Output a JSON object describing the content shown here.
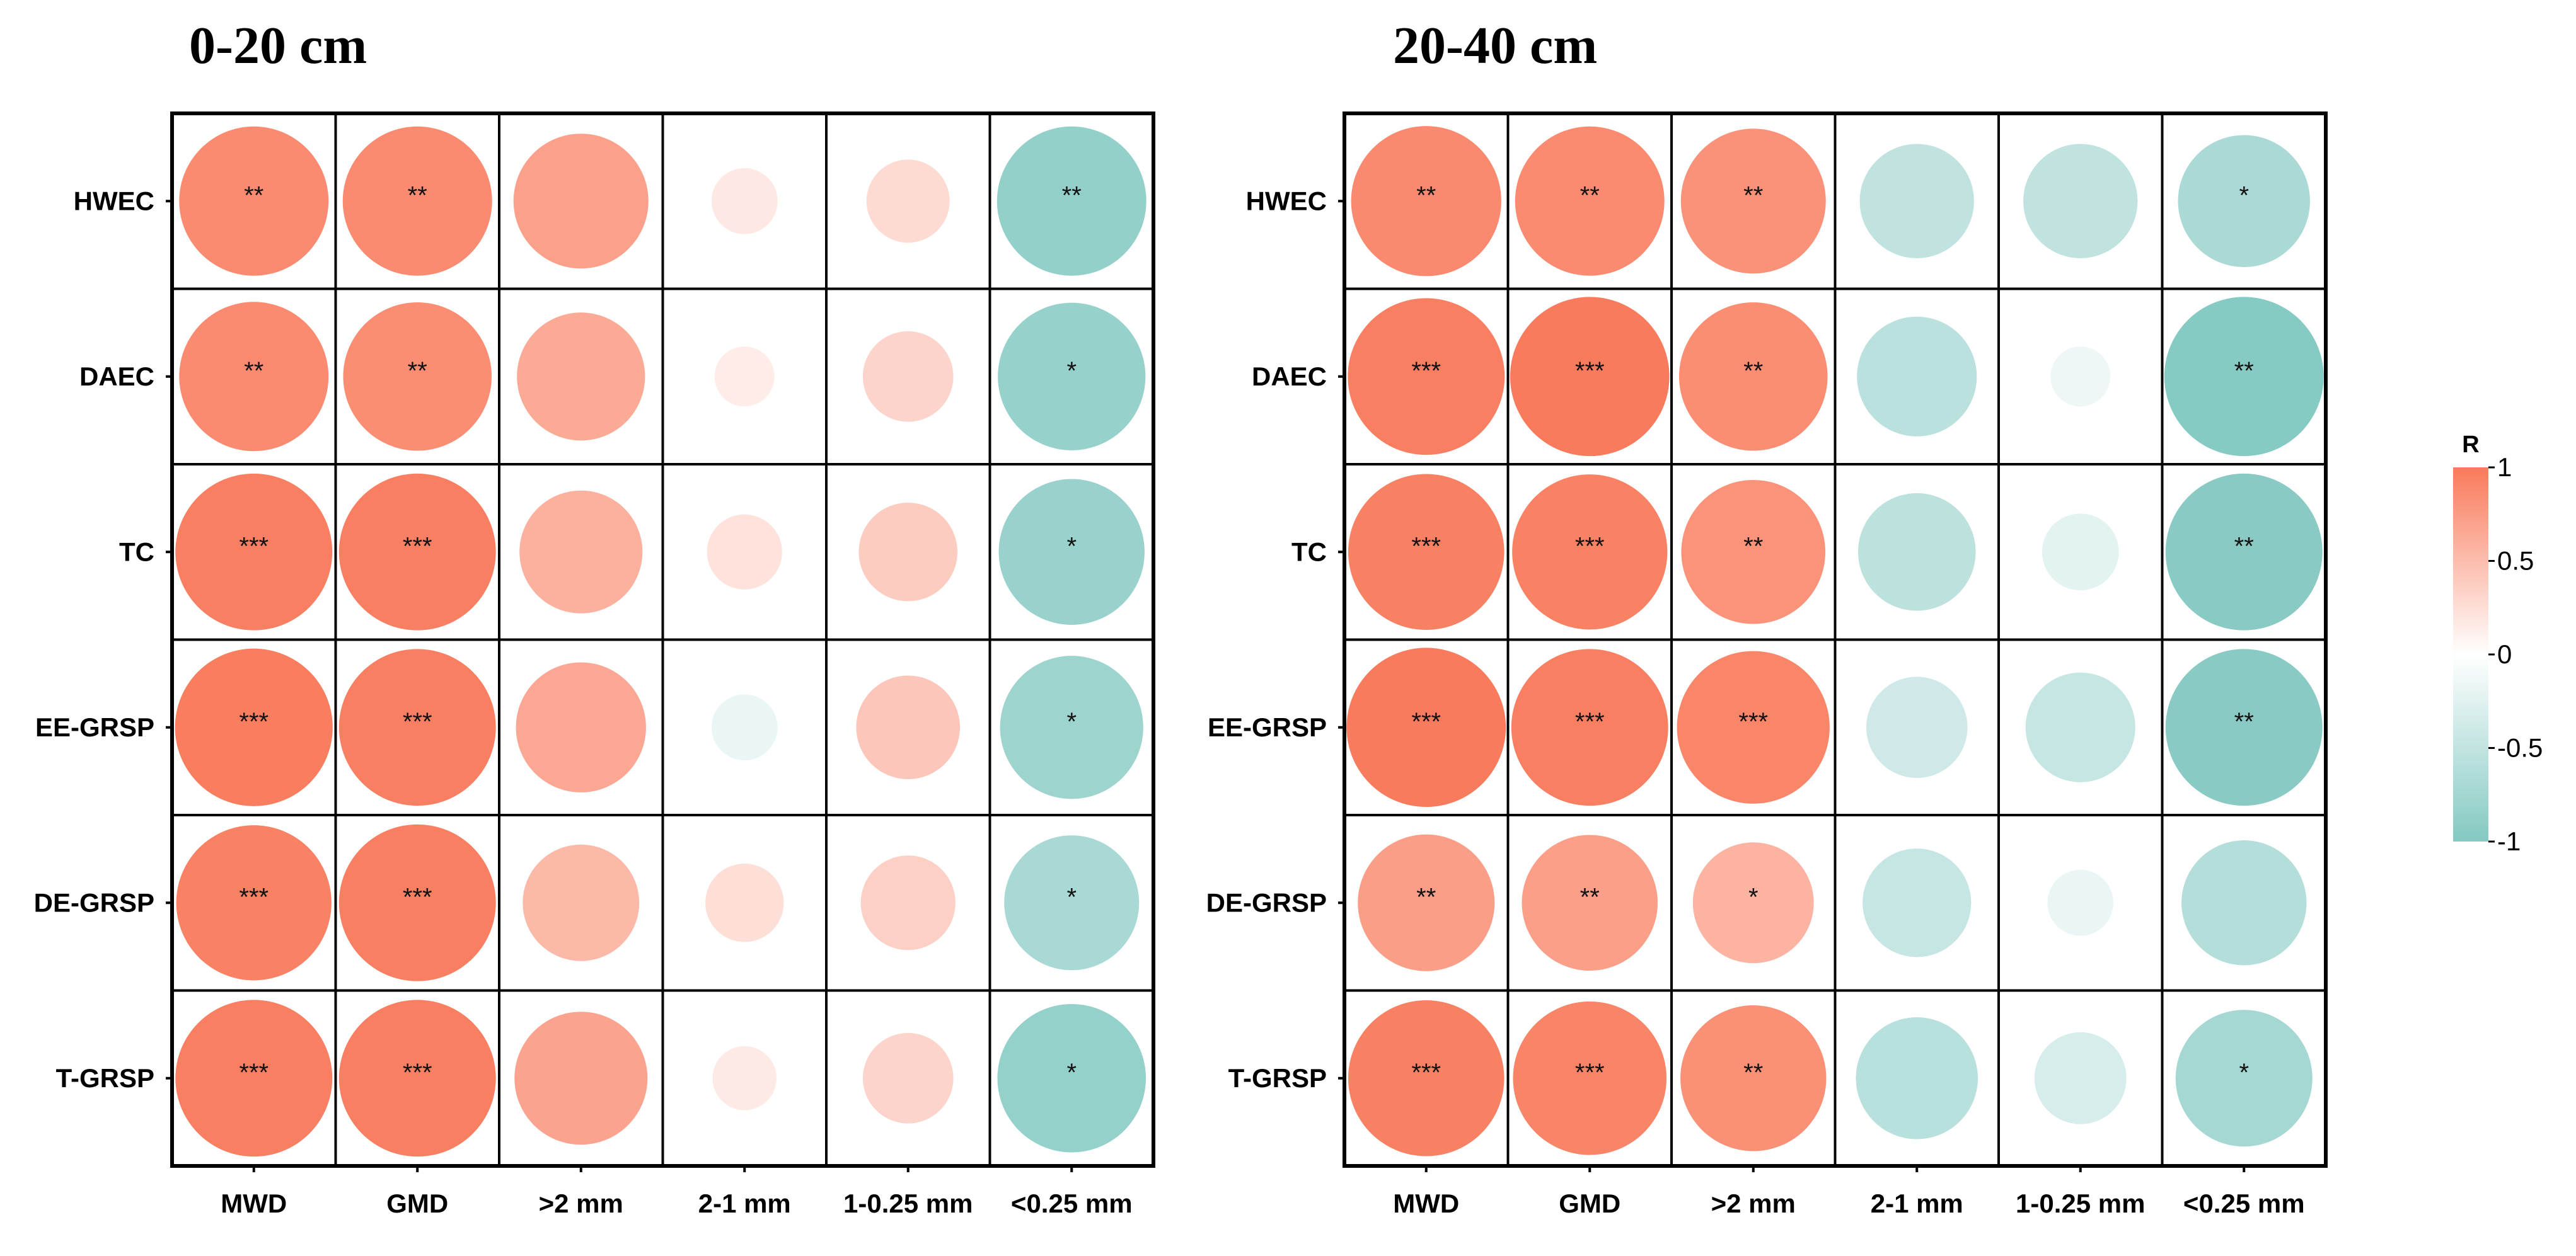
{
  "chart_data": [
    {
      "type": "heatmap",
      "title": "0-20 cm",
      "rows": [
        "HWEC",
        "DAEC",
        "TC",
        "EE-GRSP",
        "DE-GRSP",
        "T-GRSP"
      ],
      "columns": [
        "MWD",
        "GMD",
        ">2 mm",
        "2-1 mm",
        "1-0.25 mm",
        "<0.25 mm"
      ],
      "values": [
        [
          0.87,
          0.87,
          0.71,
          0.17,
          0.27,
          -0.87
        ],
        [
          0.87,
          0.86,
          0.64,
          0.14,
          0.32,
          -0.85
        ],
        [
          0.96,
          0.96,
          0.59,
          0.22,
          0.38,
          -0.83
        ],
        [
          0.97,
          0.96,
          0.66,
          -0.17,
          0.42,
          -0.8
        ],
        [
          0.94,
          0.96,
          0.53,
          0.24,
          0.35,
          -0.71
        ],
        [
          0.96,
          0.96,
          0.69,
          0.16,
          0.32,
          -0.86
        ]
      ],
      "significance": [
        [
          "**",
          "**",
          "",
          "",
          "",
          "**"
        ],
        [
          "**",
          "**",
          "",
          "",
          "",
          "*"
        ],
        [
          "***",
          "***",
          "",
          "",
          "",
          "*"
        ],
        [
          "***",
          "***",
          "",
          "",
          "",
          "*"
        ],
        [
          "***",
          "***",
          "",
          "",
          "",
          "*"
        ],
        [
          "***",
          "***",
          "",
          "",
          "",
          "*"
        ]
      ]
    },
    {
      "type": "heatmap",
      "title": "20-40 cm",
      "rows": [
        "HWEC",
        "DAEC",
        "TC",
        "EE-GRSP",
        "DE-GRSP",
        "T-GRSP"
      ],
      "columns": [
        "MWD",
        "GMD",
        ">2 mm",
        "2-1 mm",
        "1-0.25 mm",
        "<0.25 mm"
      ],
      "values": [
        [
          0.88,
          0.87,
          0.82,
          -0.51,
          -0.51,
          -0.68
        ],
        [
          0.96,
          0.99,
          0.86,
          -0.56,
          -0.14,
          -0.99
        ],
        [
          0.95,
          0.94,
          0.81,
          -0.54,
          -0.23,
          -0.96
        ],
        [
          0.99,
          0.96,
          0.91,
          -0.4,
          -0.47,
          -0.96
        ],
        [
          0.73,
          0.72,
          0.57,
          -0.46,
          -0.17,
          -0.61
        ],
        [
          0.95,
          0.92,
          0.83,
          -0.58,
          -0.33,
          -0.73
        ]
      ],
      "significance": [
        [
          "**",
          "**",
          "**",
          "",
          "",
          "*"
        ],
        [
          "***",
          "***",
          "**",
          "",
          "",
          "**"
        ],
        [
          "***",
          "***",
          "**",
          "",
          "",
          "**"
        ],
        [
          "***",
          "***",
          "***",
          "",
          "",
          "**"
        ],
        [
          "**",
          "**",
          "*",
          "",
          "",
          ""
        ],
        [
          "***",
          "***",
          "**",
          "",
          "",
          "*"
        ]
      ]
    }
  ],
  "legend": {
    "title": "R",
    "ticks": [
      1,
      0.5,
      0,
      -0.5,
      -1
    ],
    "tick_labels": [
      "1",
      "0.5",
      "0",
      "-0.5",
      "-1"
    ],
    "colors": {
      "positive": "#F97A5B",
      "zero": "#FFFFFF",
      "negative": "#84C9C2"
    }
  }
}
